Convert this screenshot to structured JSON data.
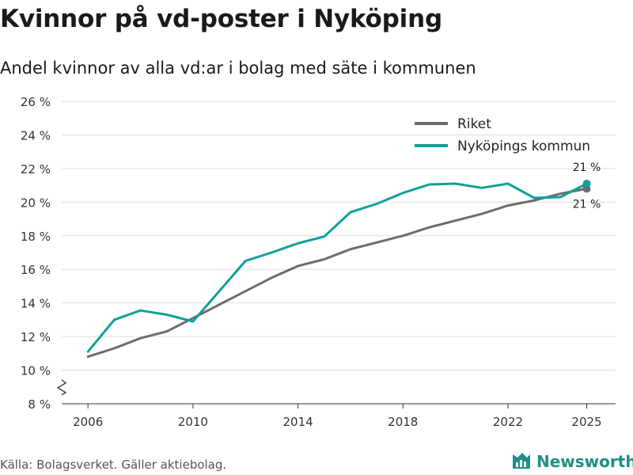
{
  "header": {
    "title": "Kvinnor på vd-poster i Nyköping",
    "subtitle": "Andel kvinnor av alla vd:ar i bolag med säte i kommunen"
  },
  "footer": {
    "source": "Källa: Bolagsverket. Gäller aktiebolag.",
    "brand": "Newsworthy"
  },
  "colors": {
    "riket": "#6d6b6f",
    "nykoping": "#0fa196",
    "grid": "#dddddd",
    "brand": "#1f8f86"
  },
  "chart_data": {
    "type": "line",
    "title": "Kvinnor på vd-poster i Nyköping",
    "subtitle": "Andel kvinnor av alla vd:ar i bolag med säte i kommunen",
    "xlabel": "",
    "ylabel": "",
    "x": [
      2006,
      2007,
      2008,
      2009,
      2010,
      2011,
      2012,
      2013,
      2014,
      2015,
      2016,
      2017,
      2018,
      2019,
      2020,
      2021,
      2022,
      2023,
      2024,
      2025
    ],
    "series": [
      {
        "name": "Riket",
        "values": [
          10.8,
          11.3,
          11.9,
          12.3,
          13.1,
          13.9,
          14.7,
          15.5,
          16.2,
          16.6,
          17.2,
          17.6,
          18.0,
          18.5,
          18.9,
          19.3,
          19.8,
          20.1,
          20.5,
          20.8
        ],
        "end_label": "21 %"
      },
      {
        "name": "Nyköpings kommun",
        "values": [
          11.1,
          13.0,
          13.55,
          13.3,
          12.9,
          14.7,
          16.5,
          17.0,
          17.55,
          17.95,
          19.4,
          19.9,
          20.55,
          21.05,
          21.1,
          20.85,
          21.1,
          20.25,
          20.3,
          21.1
        ],
        "end_label": "21 %"
      }
    ],
    "ylim": [
      8,
      26
    ],
    "yticks": [
      8,
      10,
      12,
      14,
      16,
      18,
      20,
      22,
      24,
      26
    ],
    "ytick_labels": [
      "8 %",
      "10 %",
      "12 %",
      "14 %",
      "16 %",
      "18 %",
      "20 %",
      "22 %",
      "24 %",
      "26 %"
    ],
    "xticks": [
      2006,
      2010,
      2014,
      2018,
      2022,
      2025
    ],
    "xtick_labels": [
      "2006",
      "2010",
      "2014",
      "2018",
      "2022",
      "2025"
    ],
    "axis_break": true,
    "grid": true,
    "legend_position": "top-right"
  }
}
